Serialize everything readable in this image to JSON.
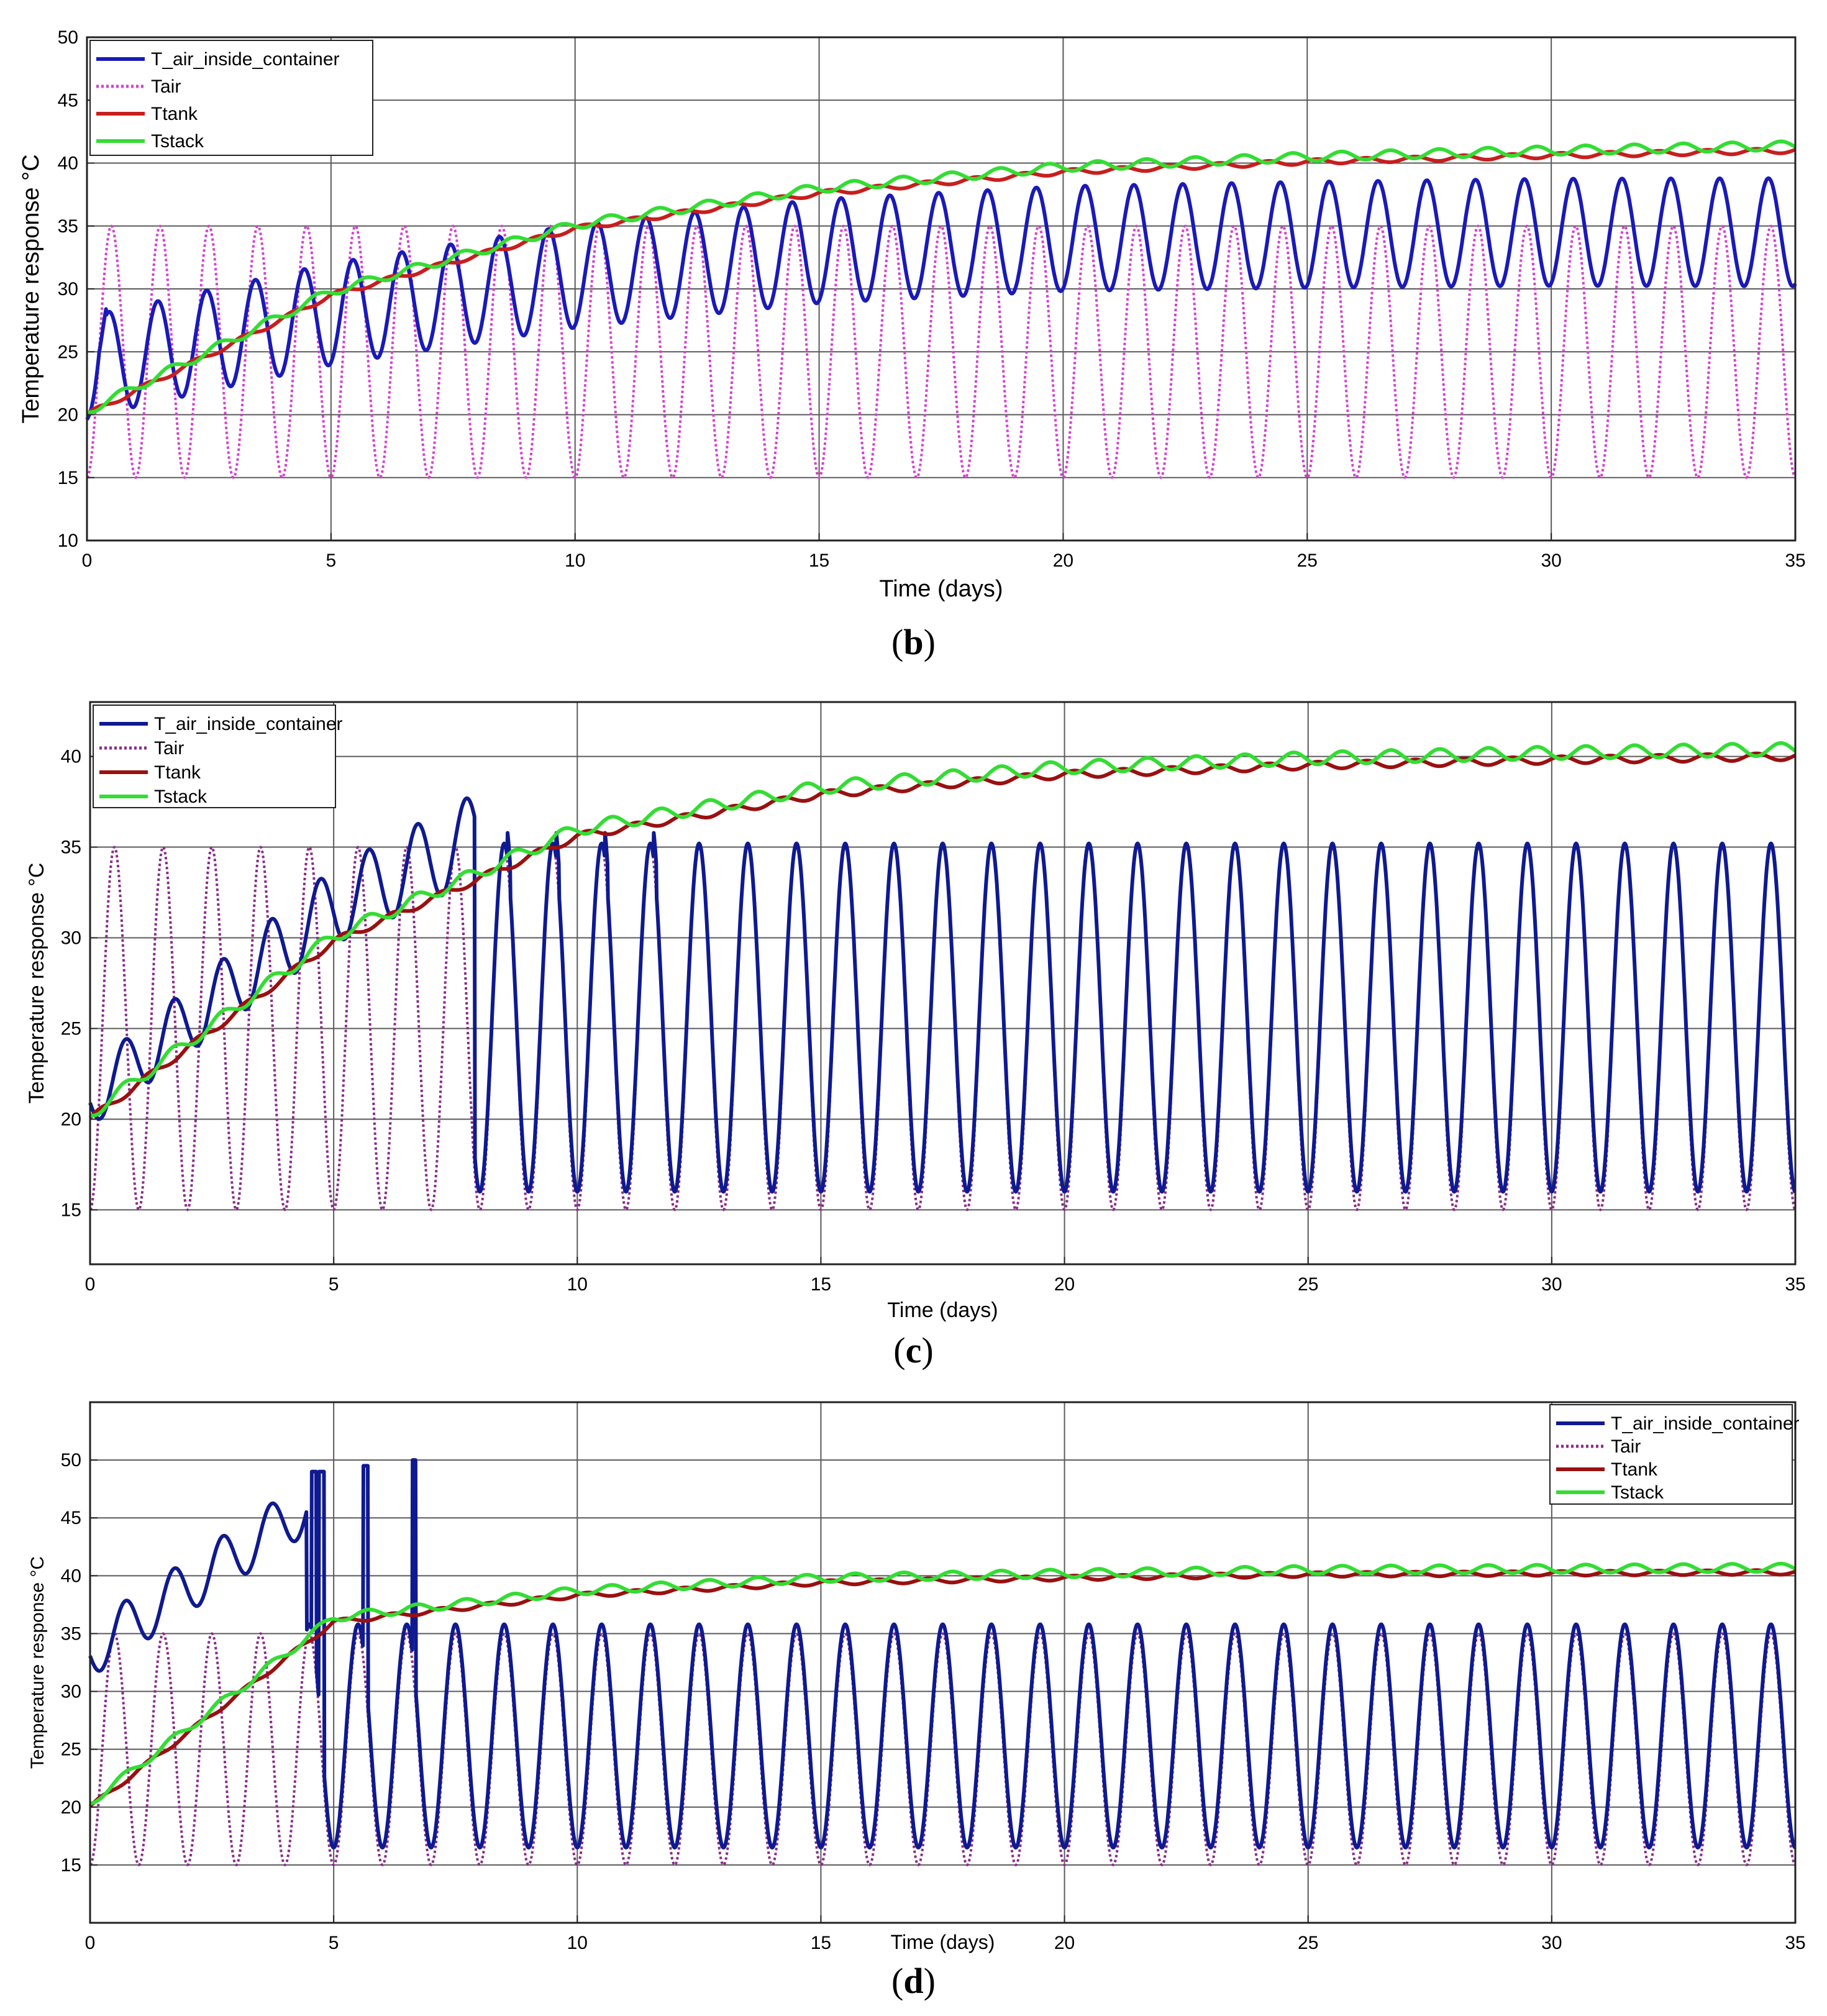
{
  "chart_data": [
    {
      "type": "line",
      "panel": "b",
      "xlabel": "Time (days)",
      "ylabel": "Temperature response °C",
      "xlim": [
        0,
        35
      ],
      "ylim": [
        10,
        50
      ],
      "xticks": [
        0,
        5,
        10,
        15,
        20,
        25,
        30,
        35
      ],
      "yticks": [
        10,
        15,
        20,
        25,
        30,
        35,
        40,
        45,
        50
      ],
      "grid": true,
      "legend_position": "top-left",
      "series": [
        {
          "name": "T_air_inside_container",
          "color": "#1a1ab8",
          "style": "solid",
          "description": "daily oscillation, mean rising 23.8 -> 34.5, amplitude 4 -> 4.3",
          "x": [
            0,
            5,
            10,
            15,
            20,
            25,
            30,
            35
          ],
          "mean": [
            23.8,
            28,
            31,
            33,
            34,
            34.3,
            34.5,
            34.5
          ]
        },
        {
          "name": "Tair",
          "color": "#d63fd0",
          "style": "dotted",
          "description": "daily sinusoid between 15 and 35",
          "min": 15,
          "max": 35,
          "period_days": 1
        },
        {
          "name": "Ttank",
          "color": "#c81e1e",
          "style": "solid",
          "x": [
            0,
            5,
            10,
            15,
            20,
            25,
            30,
            35
          ],
          "y": [
            20,
            29.5,
            34.8,
            37.6,
            39.3,
            40.1,
            40.6,
            41
          ]
        },
        {
          "name": "Tstack",
          "color": "#33dd33",
          "style": "solid",
          "x": [
            0,
            5,
            10,
            15,
            20,
            25,
            30,
            35
          ],
          "y": [
            20.3,
            29.8,
            35.1,
            38,
            39.7,
            40.5,
            41,
            41.4
          ]
        }
      ]
    },
    {
      "type": "line",
      "panel": "c",
      "xlabel": "Time (days)",
      "ylabel": "Temperature response °C",
      "xlim": [
        0,
        35
      ],
      "ylim": [
        12,
        43
      ],
      "xticks": [
        0,
        5,
        10,
        15,
        20,
        25,
        30,
        35
      ],
      "yticks": [
        15,
        20,
        25,
        30,
        35,
        40
      ],
      "grid": true,
      "legend_position": "top-left",
      "series": [
        {
          "name": "T_air_inside_container",
          "color": "#0f1a90",
          "style": "solid",
          "description": "oscillates above tank until day 8, then follows Tair between 16 and 35.2",
          "switch_day": 8
        },
        {
          "name": "Tair",
          "color": "#8a2b8a",
          "style": "dotted",
          "min": 15,
          "max": 35,
          "period_days": 1
        },
        {
          "name": "Ttank",
          "color": "#9a1010",
          "style": "solid",
          "x": [
            0,
            5,
            10,
            15,
            20,
            25,
            30,
            35
          ],
          "y": [
            20,
            29.8,
            35.6,
            37.9,
            39,
            39.5,
            39.8,
            40
          ]
        },
        {
          "name": "Tstack",
          "color": "#33dd33",
          "style": "solid",
          "x": [
            0,
            5,
            10,
            15,
            20,
            25,
            30,
            35
          ],
          "y": [
            20.3,
            30.1,
            36,
            38.3,
            39.4,
            39.9,
            40.2,
            40.4
          ]
        }
      ]
    },
    {
      "type": "line",
      "panel": "d",
      "xlabel": "Time (days)",
      "ylabel": "Temperature response °C",
      "xlim": [
        0,
        35
      ],
      "ylim": [
        10,
        55
      ],
      "xticks": [
        0,
        5,
        10,
        15,
        20,
        25,
        30,
        35
      ],
      "yticks": [
        15,
        20,
        25,
        30,
        35,
        40,
        45,
        50
      ],
      "grid": true,
      "legend_position": "top-right",
      "series": [
        {
          "name": "T_air_inside_container",
          "color": "#0f1a90",
          "style": "solid",
          "description": "starts at 33, oscillates up to ~47 until day 4.5, spikes near 49-50, then follows Tair between 16.5 and 35.8",
          "switch_day": 4.5
        },
        {
          "name": "Tair",
          "color": "#8a2b8a",
          "style": "dotted",
          "min": 15,
          "max": 35,
          "period_days": 1
        },
        {
          "name": "Ttank",
          "color": "#9a1010",
          "style": "solid",
          "x": [
            0,
            5,
            10,
            15,
            20,
            25,
            30,
            35
          ],
          "y": [
            20,
            36,
            38.3,
            39.4,
            39.8,
            40.1,
            40.2,
            40.3
          ]
        },
        {
          "name": "Tstack",
          "color": "#33dd33",
          "style": "solid",
          "x": [
            0,
            5,
            10,
            15,
            20,
            25,
            30,
            35
          ],
          "y": [
            20.4,
            36.4,
            38.7,
            39.8,
            40.2,
            40.5,
            40.6,
            40.7
          ]
        }
      ]
    }
  ],
  "captions": {
    "b": "b",
    "c": "c",
    "d": "d"
  }
}
